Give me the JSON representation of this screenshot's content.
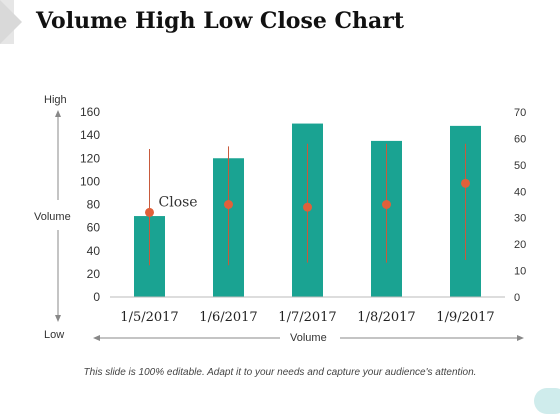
{
  "title": "Volume High Low Close Chart",
  "side_labels": {
    "high": "High",
    "low": "Low",
    "volume_left": "Volume",
    "volume_bottom": "Volume"
  },
  "footnote": "This slide is 100% editable. Adapt it to your needs and capture your audience's attention.",
  "colors": {
    "bar": "#1aa392",
    "line": "#c85a3c",
    "marker": "#e0603a"
  },
  "chart_data": {
    "type": "bar",
    "categories": [
      "1/5/2017",
      "1/6/2017",
      "1/7/2017",
      "1/8/2017",
      "1/9/2017"
    ],
    "series": [
      {
        "name": "Volume",
        "axis": "left",
        "values": [
          70,
          120,
          150,
          135,
          148
        ]
      },
      {
        "axis": "right",
        "type": "stock",
        "high": [
          56,
          57,
          58,
          58,
          58
        ],
        "low": [
          12,
          12,
          13,
          13,
          14
        ],
        "close": [
          32,
          35,
          34,
          35,
          43
        ]
      }
    ],
    "ylim_left": [
      0,
      160
    ],
    "yticks_left": [
      0,
      20,
      40,
      60,
      80,
      100,
      120,
      140,
      160
    ],
    "ylim_right": [
      0,
      70
    ],
    "yticks_right": [
      0,
      10,
      20,
      30,
      40,
      50,
      60,
      70
    ],
    "annotation": {
      "text": "Close",
      "category_index": 0
    },
    "grid": false
  }
}
